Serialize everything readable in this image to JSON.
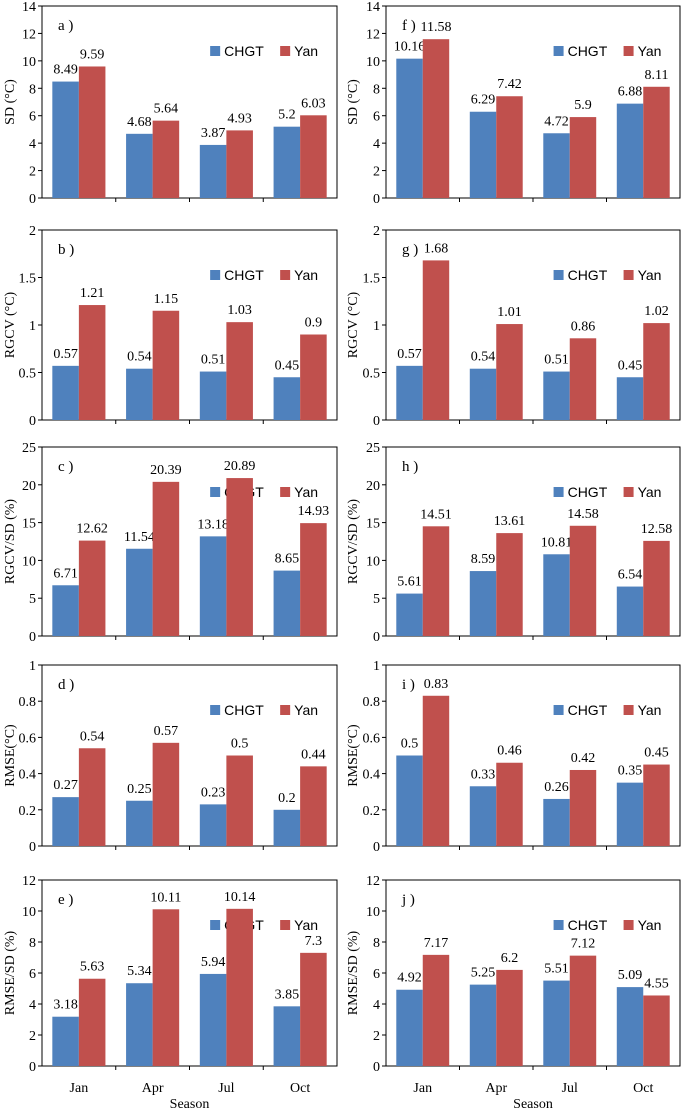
{
  "colors": {
    "CHGT": "#4F81BD",
    "Yan": "#C0504D"
  },
  "legend": [
    "CHGT",
    "Yan"
  ],
  "categories": [
    "Jan",
    "Apr",
    "Jul",
    "Oct"
  ],
  "xlabel": "Season",
  "chart_data": [
    {
      "id": "a",
      "panel_label": "a )",
      "type": "bar",
      "ylabel": "SD (°C)",
      "ylim": [
        0,
        14
      ],
      "yticks": [
        0,
        2,
        4,
        6,
        8,
        10,
        12,
        14
      ],
      "categories": [
        "Jan",
        "Apr",
        "Jul",
        "Oct"
      ],
      "series": [
        {
          "name": "CHGT",
          "values": [
            8.49,
            4.68,
            3.87,
            5.2
          ],
          "labels": [
            "8.49",
            "4.68",
            "3.87",
            "5.2"
          ]
        },
        {
          "name": "Yan",
          "values": [
            9.59,
            5.64,
            4.93,
            6.03
          ],
          "labels": [
            "9.59",
            "5.64",
            "4.93",
            "6.03"
          ]
        }
      ]
    },
    {
      "id": "f",
      "panel_label": "f )",
      "type": "bar",
      "ylabel": "SD (°C)",
      "ylim": [
        0,
        14
      ],
      "yticks": [
        0,
        2,
        4,
        6,
        8,
        10,
        12,
        14
      ],
      "categories": [
        "Jan",
        "Apr",
        "Jul",
        "Oct"
      ],
      "series": [
        {
          "name": "CHGT",
          "values": [
            10.16,
            6.29,
            4.72,
            6.88
          ],
          "labels": [
            "10.16",
            "6.29",
            "4.72",
            "6.88"
          ]
        },
        {
          "name": "Yan",
          "values": [
            11.58,
            7.42,
            5.9,
            8.11
          ],
          "labels": [
            "11.58",
            "7.42",
            "5.9",
            "8.11"
          ]
        }
      ]
    },
    {
      "id": "b",
      "panel_label": "b )",
      "type": "bar",
      "ylabel": "RGCV (°C)",
      "ylim": [
        0,
        2
      ],
      "yticks": [
        0,
        0.5,
        1,
        1.5,
        2
      ],
      "ytick_labels": [
        "0",
        "0.5",
        "1",
        "1.5",
        "2"
      ],
      "categories": [
        "Jan",
        "Apr",
        "Jul",
        "Oct"
      ],
      "series": [
        {
          "name": "CHGT",
          "values": [
            0.57,
            0.54,
            0.51,
            0.45
          ],
          "labels": [
            "0.57",
            "0.54",
            "0.51",
            "0.45"
          ]
        },
        {
          "name": "Yan",
          "values": [
            1.21,
            1.15,
            1.03,
            0.9
          ],
          "labels": [
            "1.21",
            "1.15",
            "1.03",
            "0.9"
          ]
        }
      ]
    },
    {
      "id": "g",
      "panel_label": "g )",
      "type": "bar",
      "ylabel": "RGCV (°C)",
      "ylim": [
        0,
        2
      ],
      "yticks": [
        0,
        0.5,
        1,
        1.5,
        2
      ],
      "ytick_labels": [
        "0",
        "0.5",
        "1",
        "1.5",
        "2"
      ],
      "categories": [
        "Jan",
        "Apr",
        "Jul",
        "Oct"
      ],
      "series": [
        {
          "name": "CHGT",
          "values": [
            0.57,
            0.54,
            0.51,
            0.45
          ],
          "labels": [
            "0.57",
            "0.54",
            "0.51",
            "0.45"
          ]
        },
        {
          "name": "Yan",
          "values": [
            1.68,
            1.01,
            0.86,
            1.02
          ],
          "labels": [
            "1.68",
            "1.01",
            "0.86",
            "1.02"
          ]
        }
      ]
    },
    {
      "id": "c",
      "panel_label": "c )",
      "type": "bar",
      "ylabel": "RGCV/SD (%)",
      "ylim": [
        0,
        25
      ],
      "yticks": [
        0,
        5,
        10,
        15,
        20,
        25
      ],
      "categories": [
        "Jan",
        "Apr",
        "Jul",
        "Oct"
      ],
      "series": [
        {
          "name": "CHGT",
          "values": [
            6.71,
            11.54,
            13.18,
            8.65
          ],
          "labels": [
            "6.71",
            "11.54",
            "13.18",
            "8.65"
          ]
        },
        {
          "name": "Yan",
          "values": [
            12.62,
            20.39,
            20.89,
            14.93
          ],
          "labels": [
            "12.62",
            "20.39",
            "20.89",
            "14.93"
          ]
        }
      ]
    },
    {
      "id": "h",
      "panel_label": "h )",
      "type": "bar",
      "ylabel": "RGCV/SD (%)",
      "ylim": [
        0,
        25
      ],
      "yticks": [
        0,
        5,
        10,
        15,
        20,
        25
      ],
      "categories": [
        "Jan",
        "Apr",
        "Jul",
        "Oct"
      ],
      "series": [
        {
          "name": "CHGT",
          "values": [
            5.61,
            8.59,
            10.81,
            6.54
          ],
          "labels": [
            "5.61",
            "8.59",
            "10.81",
            "6.54"
          ]
        },
        {
          "name": "Yan",
          "values": [
            14.51,
            13.61,
            14.58,
            12.58
          ],
          "labels": [
            "14.51",
            "13.61",
            "14.58",
            "12.58"
          ]
        }
      ]
    },
    {
      "id": "d",
      "panel_label": "d )",
      "type": "bar",
      "ylabel": "RMSE(°C)",
      "ylim": [
        0,
        1
      ],
      "yticks": [
        0,
        0.2,
        0.4,
        0.6,
        0.8,
        1
      ],
      "ytick_labels": [
        "0",
        "0.2",
        "0.4",
        "0.6",
        "0.8",
        "1"
      ],
      "categories": [
        "Jan",
        "Apr",
        "Jul",
        "Oct"
      ],
      "series": [
        {
          "name": "CHGT",
          "values": [
            0.27,
            0.25,
            0.23,
            0.2
          ],
          "labels": [
            "0.27",
            "0.25",
            "0.23",
            "0.2"
          ]
        },
        {
          "name": "Yan",
          "values": [
            0.54,
            0.57,
            0.5,
            0.44
          ],
          "labels": [
            "0.54",
            "0.57",
            "0.5",
            "0.44"
          ]
        }
      ]
    },
    {
      "id": "i",
      "panel_label": "i )",
      "type": "bar",
      "ylabel": "RMSE(°C)",
      "ylim": [
        0,
        1
      ],
      "yticks": [
        0,
        0.2,
        0.4,
        0.6,
        0.8,
        1
      ],
      "ytick_labels": [
        "0",
        "0.2",
        "0.4",
        "0.6",
        "0.8",
        "1"
      ],
      "categories": [
        "Jan",
        "Apr",
        "Jul",
        "Oct"
      ],
      "series": [
        {
          "name": "CHGT",
          "values": [
            0.5,
            0.33,
            0.26,
            0.35
          ],
          "labels": [
            "0.5",
            "0.33",
            "0.26",
            "0.35"
          ]
        },
        {
          "name": "Yan",
          "values": [
            0.83,
            0.46,
            0.42,
            0.45
          ],
          "labels": [
            "0.83",
            "0.46",
            "0.42",
            "0.45"
          ]
        }
      ]
    },
    {
      "id": "e",
      "panel_label": "e )",
      "type": "bar",
      "ylabel": "RMSE/SD (%)",
      "ylim": [
        0,
        12
      ],
      "yticks": [
        0,
        2,
        4,
        6,
        8,
        10,
        12
      ],
      "categories": [
        "Jan",
        "Apr",
        "Jul",
        "Oct"
      ],
      "series": [
        {
          "name": "CHGT",
          "values": [
            3.18,
            5.34,
            5.94,
            3.85
          ],
          "labels": [
            "3.18",
            "5.34",
            "5.94",
            "3.85"
          ]
        },
        {
          "name": "Yan",
          "values": [
            5.63,
            10.11,
            10.14,
            7.3
          ],
          "labels": [
            "5.63",
            "10.11",
            "10.14",
            "7.3"
          ]
        }
      ]
    },
    {
      "id": "j",
      "panel_label": "j )",
      "type": "bar",
      "ylabel": "RMSE/SD (%)",
      "ylim": [
        0,
        12
      ],
      "yticks": [
        0,
        2,
        4,
        6,
        8,
        10,
        12
      ],
      "categories": [
        "Jan",
        "Apr",
        "Jul",
        "Oct"
      ],
      "series": [
        {
          "name": "CHGT",
          "values": [
            4.92,
            5.25,
            5.51,
            5.09
          ],
          "labels": [
            "4.92",
            "5.25",
            "5.51",
            "5.09"
          ]
        },
        {
          "name": "Yan",
          "values": [
            7.17,
            6.2,
            7.12,
            4.55
          ],
          "labels": [
            "7.17",
            "6.2",
            "7.12",
            "4.55"
          ]
        }
      ]
    }
  ]
}
